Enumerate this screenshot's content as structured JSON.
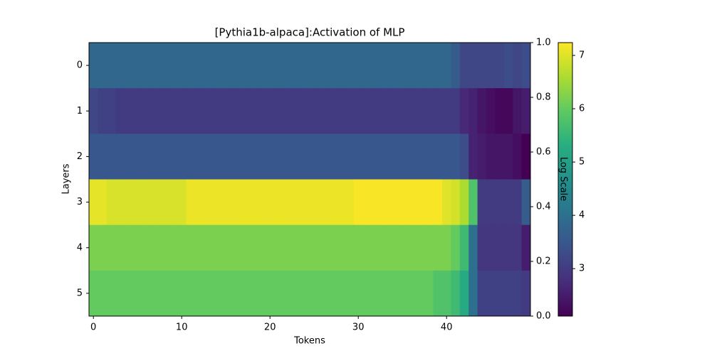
{
  "chart_data": {
    "type": "heatmap",
    "title": "[Pythia1b-alpaca]:Activation of MLP",
    "x_label": "Tokens",
    "y_label": "Layers",
    "colorbar_label": "Log Scale",
    "colormap": "viridis",
    "x": [
      0,
      1,
      2,
      3,
      4,
      5,
      6,
      7,
      8,
      9,
      10,
      11,
      12,
      13,
      14,
      15,
      16,
      17,
      18,
      19,
      20,
      21,
      22,
      23,
      24,
      25,
      26,
      27,
      28,
      29,
      30,
      31,
      32,
      33,
      34,
      35,
      36,
      37,
      38,
      39,
      40,
      41,
      42,
      43,
      44,
      45,
      46,
      47,
      48,
      49
    ],
    "y": [
      0,
      1,
      2,
      3,
      4,
      5
    ],
    "xlim": [
      -0.5,
      49.5
    ],
    "ylim": [
      5.5,
      -0.5
    ],
    "xticks": [
      0,
      10,
      20,
      30,
      40
    ],
    "yticks": [
      0,
      1,
      2,
      3,
      4,
      5
    ],
    "y2lim": [
      0,
      1
    ],
    "y2ticks": [
      {
        "value": 0,
        "label": "0.0"
      },
      0.2,
      0.4,
      0.6,
      0.8,
      {
        "value": 1,
        "label": "1.0"
      }
    ],
    "clim": [
      2.11,
      7.24
    ],
    "cticks": [
      3,
      4,
      5,
      6,
      7
    ],
    "values": [
      [
        3.8,
        3.8,
        3.8,
        3.8,
        3.8,
        3.8,
        3.8,
        3.8,
        3.8,
        3.8,
        3.8,
        3.8,
        3.8,
        3.8,
        3.8,
        3.8,
        3.8,
        3.8,
        3.8,
        3.8,
        3.8,
        3.8,
        3.8,
        3.8,
        3.8,
        3.8,
        3.8,
        3.8,
        3.8,
        3.8,
        3.8,
        3.8,
        3.8,
        3.8,
        3.8,
        3.8,
        3.8,
        3.8,
        3.8,
        3.8,
        3.8,
        3.6,
        3.2,
        3.2,
        3.2,
        3.2,
        3.2,
        3.3,
        3.2,
        3.3
      ],
      [
        3.2,
        3.1,
        3.1,
        3.0,
        3.0,
        3.0,
        3.0,
        3.0,
        3.0,
        3.0,
        3.0,
        3.0,
        3.0,
        3.0,
        3.0,
        3.0,
        3.0,
        3.0,
        3.0,
        3.0,
        3.0,
        3.0,
        3.0,
        3.0,
        3.0,
        3.0,
        3.0,
        3.0,
        3.0,
        3.0,
        3.0,
        3.0,
        3.0,
        3.0,
        3.0,
        3.0,
        3.0,
        3.0,
        3.0,
        3.0,
        3.0,
        3.0,
        2.7,
        2.6,
        2.4,
        2.3,
        2.2,
        2.2,
        2.4,
        2.5
      ],
      [
        3.5,
        3.5,
        3.5,
        3.5,
        3.5,
        3.5,
        3.5,
        3.5,
        3.5,
        3.5,
        3.5,
        3.5,
        3.5,
        3.5,
        3.5,
        3.5,
        3.5,
        3.5,
        3.5,
        3.5,
        3.5,
        3.5,
        3.5,
        3.5,
        3.5,
        3.5,
        3.5,
        3.5,
        3.5,
        3.5,
        3.5,
        3.5,
        3.5,
        3.5,
        3.5,
        3.5,
        3.5,
        3.5,
        3.5,
        3.5,
        3.5,
        3.5,
        3.3,
        2.6,
        2.5,
        2.4,
        2.4,
        2.4,
        2.3,
        2.1
      ],
      [
        7.05,
        7.05,
        6.95,
        6.95,
        6.95,
        6.95,
        6.95,
        6.95,
        6.95,
        6.95,
        6.95,
        7.1,
        7.1,
        7.1,
        7.1,
        7.1,
        7.1,
        7.1,
        7.1,
        7.1,
        7.1,
        7.1,
        7.1,
        7.1,
        7.1,
        7.1,
        7.1,
        7.1,
        7.1,
        7.1,
        7.2,
        7.2,
        7.2,
        7.2,
        7.2,
        7.2,
        7.2,
        7.2,
        7.2,
        7.2,
        7.0,
        6.9,
        6.6,
        5.8,
        3.0,
        3.0,
        3.0,
        3.0,
        3.0,
        3.6
      ],
      [
        6.2,
        6.2,
        6.2,
        6.2,
        6.2,
        6.2,
        6.2,
        6.2,
        6.2,
        6.2,
        6.2,
        6.2,
        6.2,
        6.2,
        6.2,
        6.2,
        6.2,
        6.2,
        6.2,
        6.2,
        6.2,
        6.2,
        6.2,
        6.2,
        6.2,
        6.2,
        6.2,
        6.2,
        6.2,
        6.2,
        6.2,
        6.2,
        6.2,
        6.2,
        6.2,
        6.2,
        6.2,
        6.2,
        6.2,
        6.2,
        6.2,
        6.0,
        5.6,
        4.0,
        2.9,
        2.9,
        2.9,
        2.9,
        2.9,
        2.5
      ],
      [
        6.0,
        6.0,
        6.0,
        6.0,
        6.0,
        6.0,
        6.0,
        6.0,
        6.0,
        6.0,
        6.0,
        6.0,
        6.0,
        6.0,
        6.0,
        6.0,
        6.0,
        6.0,
        6.0,
        6.0,
        6.0,
        6.0,
        6.0,
        6.0,
        6.0,
        6.0,
        6.0,
        6.0,
        6.0,
        6.0,
        6.0,
        6.0,
        6.0,
        6.0,
        6.0,
        6.0,
        6.0,
        6.0,
        6.0,
        5.8,
        5.8,
        5.6,
        5.2,
        4.0,
        3.1,
        3.1,
        3.1,
        3.1,
        3.1,
        3.0
      ]
    ]
  }
}
